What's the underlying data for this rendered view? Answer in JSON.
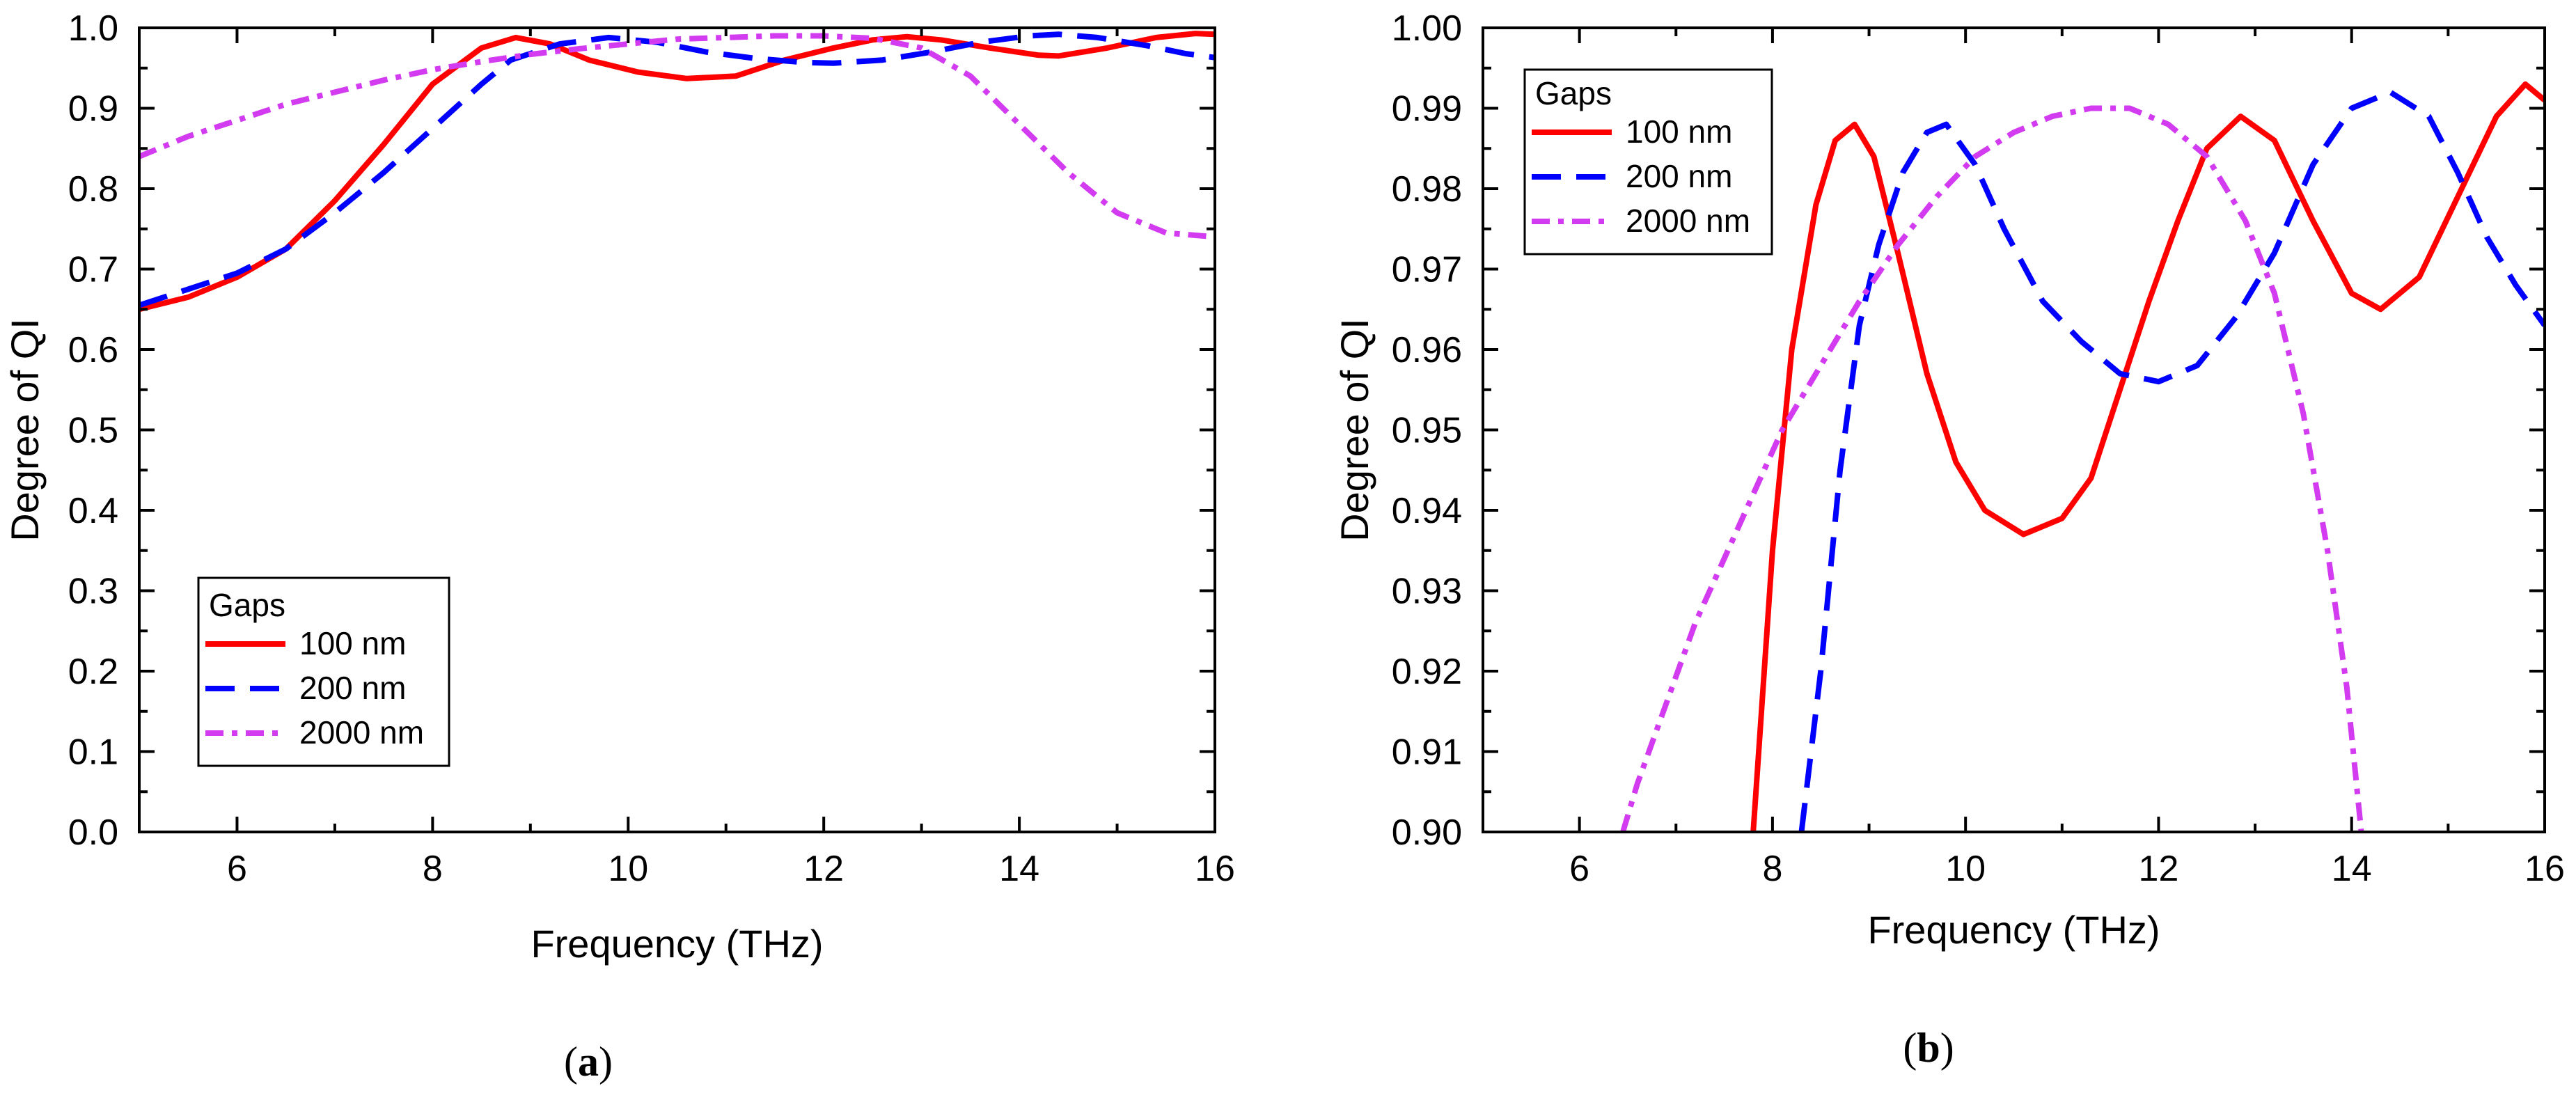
{
  "chart_data": [
    {
      "type": "line",
      "panel_label": "a",
      "xlabel": "Frequency (THz)",
      "ylabel": "Degree of QI",
      "xlim": [
        5,
        16
      ],
      "ylim": [
        0.0,
        1.0
      ],
      "xticks": [
        6,
        8,
        10,
        12,
        14,
        16
      ],
      "xtick_labels": [
        "6",
        "8",
        "10",
        "12",
        "14",
        "16"
      ],
      "yticks": [
        0.0,
        0.1,
        0.2,
        0.3,
        0.4,
        0.5,
        0.6,
        0.7,
        0.8,
        0.9,
        1.0
      ],
      "ytick_labels": [
        "0.0",
        "0.1",
        "0.2",
        "0.3",
        "0.4",
        "0.5",
        "0.6",
        "0.7",
        "0.8",
        "0.9",
        "1.0"
      ],
      "legend": {
        "title": "Gaps",
        "placement": "bottom-left",
        "entries": [
          "100 nm",
          "200 nm",
          "2000 nm"
        ]
      },
      "series": [
        {
          "name": "100 nm",
          "color": "#ff0000",
          "dash": "solid",
          "points": [
            [
              5,
              0.65
            ],
            [
              5.5,
              0.665
            ],
            [
              6,
              0.69
            ],
            [
              6.5,
              0.725
            ],
            [
              7,
              0.785
            ],
            [
              7.5,
              0.855
            ],
            [
              8,
              0.93
            ],
            [
              8.5,
              0.975
            ],
            [
              8.85,
              0.988
            ],
            [
              9.2,
              0.98
            ],
            [
              9.6,
              0.96
            ],
            [
              10.1,
              0.945
            ],
            [
              10.6,
              0.937
            ],
            [
              11.1,
              0.94
            ],
            [
              11.6,
              0.96
            ],
            [
              12.1,
              0.975
            ],
            [
              12.5,
              0.985
            ],
            [
              12.85,
              0.989
            ],
            [
              13.2,
              0.985
            ],
            [
              13.7,
              0.975
            ],
            [
              14.2,
              0.966
            ],
            [
              14.4,
              0.965
            ],
            [
              14.9,
              0.975
            ],
            [
              15.4,
              0.988
            ],
            [
              15.8,
              0.993
            ],
            [
              16,
              0.992
            ]
          ]
        },
        {
          "name": "200 nm",
          "color": "#0000ff",
          "dash": "dash",
          "points": [
            [
              5,
              0.655
            ],
            [
              5.5,
              0.675
            ],
            [
              6,
              0.695
            ],
            [
              6.5,
              0.725
            ],
            [
              7,
              0.77
            ],
            [
              7.5,
              0.82
            ],
            [
              8,
              0.875
            ],
            [
              8.5,
              0.93
            ],
            [
              8.8,
              0.96
            ],
            [
              9.3,
              0.98
            ],
            [
              9.8,
              0.988
            ],
            [
              10.3,
              0.982
            ],
            [
              10.8,
              0.97
            ],
            [
              11.3,
              0.962
            ],
            [
              11.8,
              0.957
            ],
            [
              12.1,
              0.956
            ],
            [
              12.6,
              0.96
            ],
            [
              13.1,
              0.97
            ],
            [
              13.6,
              0.982
            ],
            [
              14.1,
              0.99
            ],
            [
              14.4,
              0.992
            ],
            [
              14.8,
              0.988
            ],
            [
              15.3,
              0.978
            ],
            [
              15.7,
              0.968
            ],
            [
              16,
              0.963
            ]
          ]
        },
        {
          "name": "2000 nm",
          "color": "#d23bf0",
          "dash": "dashdot",
          "points": [
            [
              5,
              0.84
            ],
            [
              5.5,
              0.865
            ],
            [
              6,
              0.885
            ],
            [
              6.5,
              0.905
            ],
            [
              7,
              0.92
            ],
            [
              7.5,
              0.935
            ],
            [
              8,
              0.948
            ],
            [
              8.5,
              0.958
            ],
            [
              9,
              0.967
            ],
            [
              9.5,
              0.974
            ],
            [
              10,
              0.98
            ],
            [
              10.5,
              0.986
            ],
            [
              11,
              0.988
            ],
            [
              11.5,
              0.99
            ],
            [
              12,
              0.99
            ],
            [
              12.5,
              0.987
            ],
            [
              13,
              0.975
            ],
            [
              13.5,
              0.94
            ],
            [
              14,
              0.88
            ],
            [
              14.5,
              0.82
            ],
            [
              15,
              0.77
            ],
            [
              15.5,
              0.745
            ],
            [
              16,
              0.74
            ]
          ]
        }
      ]
    },
    {
      "type": "line",
      "panel_label": "b",
      "xlabel": "Frequency (THz)",
      "ylabel": "Degree of QI",
      "xlim": [
        5,
        16
      ],
      "ylim": [
        0.9,
        1.0
      ],
      "xticks": [
        6,
        8,
        10,
        12,
        14,
        16
      ],
      "xtick_labels": [
        "6",
        "8",
        "10",
        "12",
        "14",
        "16"
      ],
      "yticks": [
        0.9,
        0.91,
        0.92,
        0.93,
        0.94,
        0.95,
        0.96,
        0.97,
        0.98,
        0.99,
        1.0
      ],
      "ytick_labels": [
        "0.90",
        "0.91",
        "0.92",
        "0.93",
        "0.94",
        "0.95",
        "0.96",
        "0.97",
        "0.98",
        "0.99",
        "1.00"
      ],
      "legend": {
        "title": "Gaps",
        "placement": "top-left",
        "entries": [
          "100 nm",
          "200 nm",
          "2000 nm"
        ]
      },
      "series": [
        {
          "name": "100 nm",
          "color": "#ff0000",
          "dash": "solid",
          "points": [
            [
              7.8,
              0.9
            ],
            [
              8.0,
              0.935
            ],
            [
              8.2,
              0.96
            ],
            [
              8.45,
              0.978
            ],
            [
              8.65,
              0.986
            ],
            [
              8.85,
              0.988
            ],
            [
              9.05,
              0.984
            ],
            [
              9.3,
              0.972
            ],
            [
              9.6,
              0.957
            ],
            [
              9.9,
              0.946
            ],
            [
              10.2,
              0.94
            ],
            [
              10.6,
              0.937
            ],
            [
              11.0,
              0.939
            ],
            [
              11.3,
              0.944
            ],
            [
              11.6,
              0.955
            ],
            [
              11.9,
              0.966
            ],
            [
              12.2,
              0.976
            ],
            [
              12.5,
              0.985
            ],
            [
              12.85,
              0.989
            ],
            [
              13.2,
              0.986
            ],
            [
              13.6,
              0.976
            ],
            [
              14.0,
              0.967
            ],
            [
              14.3,
              0.965
            ],
            [
              14.7,
              0.969
            ],
            [
              15.1,
              0.979
            ],
            [
              15.5,
              0.989
            ],
            [
              15.8,
              0.993
            ],
            [
              16,
              0.991
            ]
          ]
        },
        {
          "name": "200 nm",
          "color": "#0000ff",
          "dash": "dash",
          "points": [
            [
              8.3,
              0.9
            ],
            [
              8.5,
              0.92
            ],
            [
              8.7,
              0.945
            ],
            [
              8.9,
              0.963
            ],
            [
              9.1,
              0.973
            ],
            [
              9.35,
              0.982
            ],
            [
              9.6,
              0.987
            ],
            [
              9.8,
              0.988
            ],
            [
              10.1,
              0.983
            ],
            [
              10.4,
              0.975
            ],
            [
              10.8,
              0.966
            ],
            [
              11.2,
              0.961
            ],
            [
              11.6,
              0.957
            ],
            [
              12.0,
              0.956
            ],
            [
              12.4,
              0.958
            ],
            [
              12.8,
              0.964
            ],
            [
              13.2,
              0.972
            ],
            [
              13.6,
              0.983
            ],
            [
              14.0,
              0.99
            ],
            [
              14.4,
              0.992
            ],
            [
              14.8,
              0.989
            ],
            [
              15.1,
              0.982
            ],
            [
              15.4,
              0.974
            ],
            [
              15.7,
              0.968
            ],
            [
              16,
              0.963
            ]
          ]
        },
        {
          "name": "2000 nm",
          "color": "#d23bf0",
          "dash": "dashdot",
          "points": [
            [
              6.45,
              0.9
            ],
            [
              6.6,
              0.906
            ],
            [
              6.9,
              0.916
            ],
            [
              7.2,
              0.926
            ],
            [
              7.5,
              0.934
            ],
            [
              7.8,
              0.942
            ],
            [
              8.1,
              0.95
            ],
            [
              8.5,
              0.958
            ],
            [
              8.9,
              0.966
            ],
            [
              9.3,
              0.973
            ],
            [
              9.7,
              0.979
            ],
            [
              10.1,
              0.984
            ],
            [
              10.5,
              0.987
            ],
            [
              10.9,
              0.989
            ],
            [
              11.3,
              0.99
            ],
            [
              11.7,
              0.99
            ],
            [
              12.1,
              0.988
            ],
            [
              12.5,
              0.984
            ],
            [
              12.9,
              0.976
            ],
            [
              13.2,
              0.967
            ],
            [
              13.5,
              0.952
            ],
            [
              13.75,
              0.935
            ],
            [
              13.95,
              0.918
            ],
            [
              14.1,
              0.9
            ]
          ]
        }
      ]
    }
  ]
}
